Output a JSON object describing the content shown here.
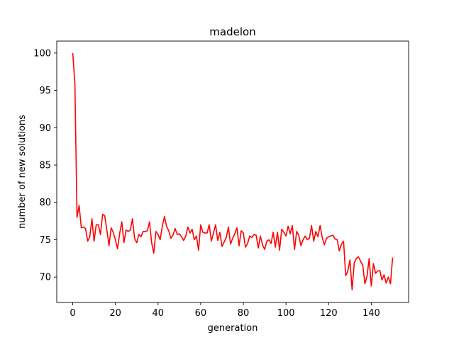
{
  "chart_data": {
    "type": "line",
    "title": "madelon",
    "xlabel": "generation",
    "ylabel": "number of new solutions",
    "xlim": [
      -7.5,
      157.5
    ],
    "ylim": [
      66.6,
      101.6
    ],
    "xticks": [
      0,
      20,
      40,
      60,
      80,
      100,
      120,
      140
    ],
    "yticks": [
      70,
      75,
      80,
      85,
      90,
      95,
      100
    ],
    "grid": false,
    "legend": "none",
    "series": [
      {
        "color": "#ff0000",
        "x": [
          0,
          1,
          2,
          3,
          4,
          5,
          6,
          7,
          8,
          9,
          10,
          11,
          12,
          13,
          14,
          15,
          16,
          17,
          18,
          19,
          20,
          21,
          22,
          23,
          24,
          25,
          26,
          27,
          28,
          29,
          30,
          31,
          32,
          33,
          34,
          35,
          36,
          37,
          38,
          39,
          40,
          41,
          42,
          43,
          44,
          45,
          46,
          47,
          48,
          49,
          50,
          51,
          52,
          53,
          54,
          55,
          56,
          57,
          58,
          59,
          60,
          61,
          62,
          63,
          64,
          65,
          66,
          67,
          68,
          69,
          70,
          71,
          72,
          73,
          74,
          75,
          76,
          77,
          78,
          79,
          80,
          81,
          82,
          83,
          84,
          85,
          86,
          87,
          88,
          89,
          90,
          91,
          92,
          93,
          94,
          95,
          96,
          97,
          98,
          99,
          100,
          101,
          102,
          103,
          104,
          105,
          106,
          107,
          108,
          109,
          110,
          111,
          112,
          113,
          114,
          115,
          116,
          117,
          118,
          119,
          120,
          121,
          122,
          123,
          124,
          125,
          126,
          127,
          128,
          129,
          130,
          131,
          132,
          133,
          134,
          135,
          136,
          137,
          138,
          139,
          140,
          141,
          142,
          143,
          144,
          145,
          146,
          147,
          148,
          149,
          150
        ],
        "y": [
          100,
          96,
          78,
          79.6,
          76.6,
          76.7,
          76.5,
          74.8,
          75.4,
          77.8,
          74.8,
          77,
          77,
          75.7,
          78.4,
          78.2,
          76.3,
          74.2,
          76.6,
          76,
          75,
          73.8,
          75.8,
          77.4,
          74.6,
          76.3,
          76.1,
          76.3,
          77.8,
          75.2,
          74.6,
          75.7,
          75.4,
          76.1,
          76.1,
          76.2,
          77.4,
          74.6,
          73.2,
          76.1,
          75.7,
          75,
          76.8,
          78.1,
          76.8,
          76.2,
          75.2,
          75.6,
          76.5,
          75.7,
          75.8,
          75.4,
          74.9,
          75.5,
          76.7,
          75.9,
          76.4,
          75,
          75.5,
          73.6,
          77,
          76,
          75.9,
          75.9,
          77,
          74.8,
          75.9,
          77,
          74.9,
          76,
          74.1,
          74.7,
          75.3,
          76.7,
          74.4,
          75.2,
          75.8,
          76.6,
          74.2,
          76.2,
          75.9,
          74,
          74.5,
          75.5,
          75.3,
          75.7,
          75.6,
          73.9,
          75.5,
          74.3,
          73.7,
          74.8,
          75,
          74.5,
          76,
          74,
          76,
          73.6,
          76.4,
          76,
          75.5,
          76.8,
          75.8,
          76.9,
          73.7,
          76.1,
          75.6,
          74.2,
          75,
          75.5,
          75,
          75.2,
          76.9,
          74.8,
          76.1,
          75.4,
          76.9,
          75.3,
          74.3,
          75.2,
          75.4,
          75.5,
          75.6,
          75.1,
          75,
          73.5,
          74.4,
          74.8,
          70.2,
          70.8,
          72.3,
          68.3,
          71.9,
          72.5,
          72.7,
          72.1,
          71.6,
          69.1,
          70.1,
          72.5,
          68.8,
          71.8,
          70.5,
          70.8,
          70.9,
          69.6,
          70.3,
          69.2,
          70,
          69.1,
          72.6
        ]
      }
    ]
  }
}
